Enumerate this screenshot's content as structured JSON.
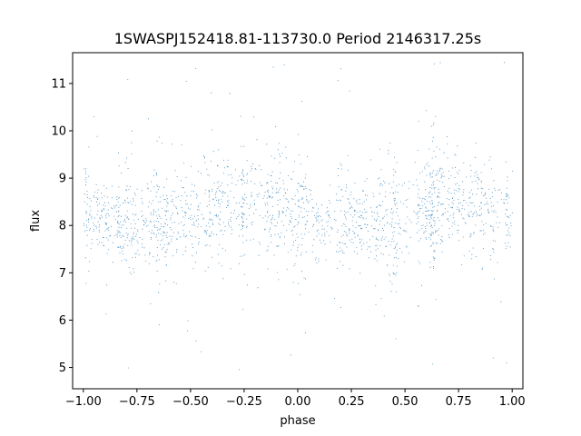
{
  "chart_data": {
    "type": "scatter",
    "title": "1SWASPJ152418.81-113730.0 Period 2146317.25s",
    "xlabel": "phase",
    "ylabel": "flux",
    "xlim": [
      -1.05,
      1.05
    ],
    "ylim": [
      4.55,
      11.65
    ],
    "x_ticks": [
      -1.0,
      -0.75,
      -0.5,
      -0.25,
      0.0,
      0.25,
      0.5,
      0.75,
      1.0
    ],
    "x_tick_labels": [
      "−1.00",
      "−0.75",
      "−0.50",
      "−0.25",
      "0.00",
      "0.25",
      "0.50",
      "0.75",
      "1.00"
    ],
    "y_ticks": [
      5,
      6,
      7,
      8,
      9,
      10,
      11
    ],
    "y_tick_labels": [
      "5",
      "6",
      "7",
      "8",
      "9",
      "10",
      "11"
    ],
    "grid": false,
    "marker_color": "#1f77b4",
    "series": [
      {
        "x_range": [
          -1.0,
          1.0
        ],
        "core_band": [
          7.5,
          9.0
        ],
        "mean_flux": 8.25,
        "outlier_range": [
          4.9,
          11.5
        ],
        "point_count": "dense (many thousands, phase-folded light curve)"
      }
    ]
  }
}
